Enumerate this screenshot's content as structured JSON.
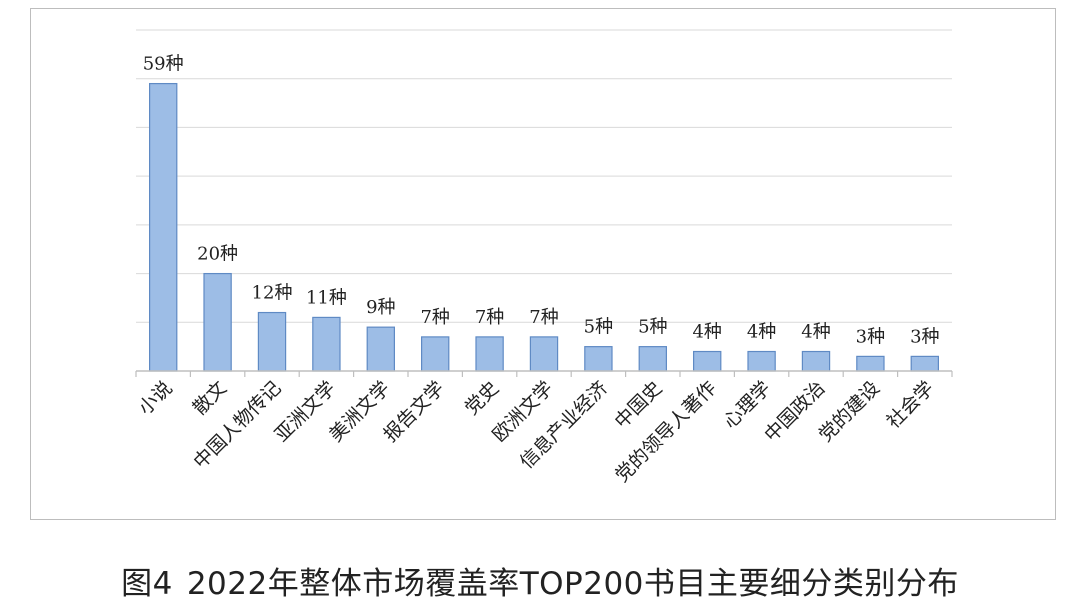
{
  "chart_data": {
    "type": "bar",
    "categories": [
      "小说",
      "散文",
      "中国人物传记",
      "亚洲文学",
      "美洲文学",
      "报告文学",
      "党史",
      "欧洲文学",
      "信息产业经济",
      "中国史",
      "党的领导人著作",
      "心理学",
      "中国政治",
      "党的建设",
      "社会学"
    ],
    "values": [
      59,
      20,
      12,
      11,
      9,
      7,
      7,
      7,
      5,
      5,
      4,
      4,
      4,
      3,
      3
    ],
    "value_labels": [
      "59种",
      "20种",
      "12种",
      "11种",
      "9种",
      "7种",
      "7种",
      "7种",
      "5种",
      "5种",
      "4种",
      "4种",
      "4种",
      "3种",
      "3种"
    ],
    "ylim": [
      0,
      70
    ],
    "grid": true,
    "legend": "none",
    "bar_color": "#9dbde6",
    "bar_edge_color": "#5f8ac4"
  },
  "caption": {
    "figure_number": "图4",
    "title": "2022年整体市场覆盖率TOP200书目主要细分类别分布"
  }
}
